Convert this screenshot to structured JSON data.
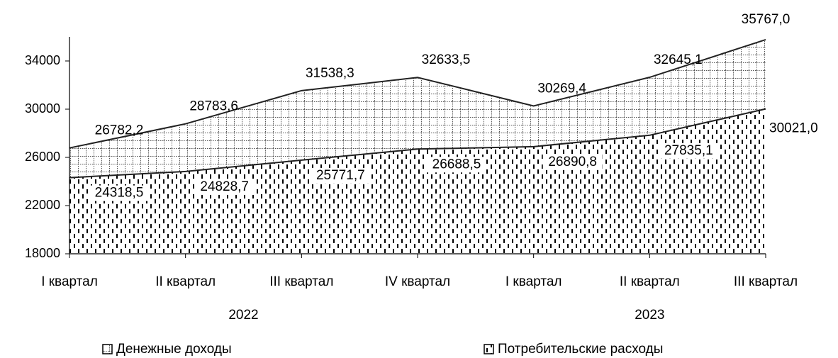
{
  "chart_data": {
    "type": "area",
    "categories": [
      "I квартал",
      "II квартал",
      "III квартал",
      "IV квартал",
      "I квартал",
      "II квартал",
      "III квартал"
    ],
    "x_groups": [
      {
        "label": "2022",
        "span": 4
      },
      {
        "label": "2023",
        "span": 3
      }
    ],
    "series": [
      {
        "name": "Денежные доходы",
        "color": "#000000",
        "pattern": "grid",
        "values": [
          26782.2,
          28783.6,
          31538.3,
          32633.5,
          30269.4,
          32645.1,
          35767.0
        ],
        "value_labels": [
          "26782,2",
          "28783,6",
          "31538,3",
          "32633,5",
          "30269,4",
          "32645,1",
          "35767,0"
        ]
      },
      {
        "name": "Потребительские расходы",
        "color": "#000000",
        "pattern": "dashes",
        "values": [
          24318.5,
          24828.7,
          25771.7,
          26688.5,
          26890.8,
          27835.1,
          30021.0
        ],
        "value_labels": [
          "24318,5",
          "24828,7",
          "25771,7",
          "26688,5",
          "26890,8",
          "27835,1",
          "30021,0"
        ]
      }
    ],
    "ylim": [
      18000,
      36000
    ],
    "yticks": [
      18000,
      22000,
      26000,
      30000,
      34000
    ],
    "grid": false,
    "legend": "bottom"
  }
}
